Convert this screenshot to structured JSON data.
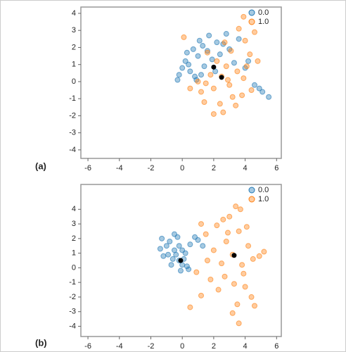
{
  "chart_data": [
    {
      "type": "scatter",
      "label": "(a)",
      "legend": "upper right",
      "xlim": [
        -6.45,
        6.3
      ],
      "ylim": [
        -4.5,
        4.37
      ],
      "xticks": [
        -6,
        -4,
        -2,
        0,
        2,
        4,
        6
      ],
      "yticks": [
        -4,
        -3,
        -2,
        -1,
        0,
        1,
        2,
        3,
        4
      ],
      "series": [
        {
          "name": "0.0",
          "color": "#1f77b4",
          "x": [
            0.2,
            0.5,
            1.0,
            1.3,
            0.8,
            1.6,
            2.2,
            1.9,
            0.4,
            -0.2,
            1.1,
            2.6,
            3.0,
            2.1,
            1.4,
            0.7,
            3.6,
            4.2,
            4.6,
            5.1,
            5.5,
            4.9,
            0.0,
            1.7,
            2.4,
            -0.3,
            0.9,
            3.3,
            1.2,
            2.8,
            0.3,
            4.0
          ],
          "y": [
            1.2,
            0.6,
            1.5,
            2.1,
            0.3,
            1.8,
            2.3,
            1.3,
            1.0,
            0.4,
            2.4,
            2.2,
            1.9,
            0.6,
            0.9,
            1.9,
            2.5,
            1.2,
            -0.2,
            -0.6,
            -0.9,
            -0.4,
            0.8,
            2.7,
            1.6,
            0.1,
            0.1,
            1.1,
            0.4,
            2.8,
            1.7,
            0.8
          ]
        },
        {
          "name": "1.0",
          "color": "#ff7f0e",
          "x": [
            2.5,
            2.0,
            3.0,
            1.5,
            2.8,
            3.5,
            2.2,
            1.8,
            3.2,
            2.4,
            1.2,
            3.9,
            4.3,
            4.0,
            3.6,
            3.9,
            4.6,
            4.8,
            1.0,
            2.6,
            2.0,
            3.4,
            0.5,
            0.1,
            3.1,
            2.7,
            4.4,
            1.6,
            3.8,
            2.9,
            1.4,
            4.1
          ],
          "y": [
            0.3,
            -0.4,
            -0.2,
            -0.1,
            0.9,
            0.6,
            1.2,
            0.4,
            -0.9,
            -1.3,
            -0.6,
            0.2,
            1.6,
            2.4,
            3.1,
            3.8,
            2.9,
            1.2,
            0.0,
            -1.8,
            -1.9,
            -1.4,
            -0.4,
            2.6,
            1.8,
            2.3,
            -0.5,
            1.7,
            -0.8,
            0.1,
            -1.2,
            0.9
          ]
        }
      ],
      "centroids": {
        "color": "#000000",
        "x": [
          2.0,
          2.5
        ],
        "y": [
          0.85,
          0.25
        ]
      }
    },
    {
      "type": "scatter",
      "label": "(b)",
      "legend": "upper right",
      "xlim": [
        -6.45,
        6.3
      ],
      "ylim": [
        -4.7,
        5.7
      ],
      "xticks": [
        -6,
        -4,
        -2,
        0,
        2,
        4,
        6
      ],
      "yticks": [
        -4,
        -3,
        -2,
        -1,
        0,
        1,
        2,
        3,
        4
      ],
      "series": [
        {
          "name": "0.0",
          "color": "#1f77b4",
          "x": [
            -0.2,
            -0.5,
            0.0,
            -0.8,
            -1.3,
            -0.3,
            0.2,
            -0.6,
            0.3,
            -0.1,
            -1.0,
            0.5,
            1.0,
            0.8,
            -0.4,
            0.1,
            -0.7,
            -1.4,
            -0.2,
            0.4,
            -0.9,
            0.0,
            -0.5,
            1.3,
            -1.2
          ],
          "y": [
            0.5,
            1.2,
            0.2,
            1.8,
            2.0,
            2.1,
            1.0,
            0.6,
            0.1,
            -0.2,
            1.5,
            1.6,
            1.9,
            2.1,
            0.9,
            0.6,
            0.2,
            1.3,
            1.5,
            -0.1,
            0.9,
            1.2,
            2.3,
            1.5,
            0.8
          ]
        },
        {
          "name": "1.0",
          "color": "#ff7f0e",
          "x": [
            3.2,
            2.8,
            3.6,
            2.5,
            3.9,
            4.2,
            2.2,
            3.0,
            3.4,
            3.7,
            4.5,
            4.0,
            4.4,
            3.5,
            3.2,
            3.6,
            4.6,
            2.0,
            1.5,
            1.2,
            0.9,
            1.8,
            2.3,
            1.2,
            0.5,
            3.8,
            2.7,
            4.9,
            5.2,
            2.9,
            1.6,
            3.3,
            4.1,
            2.6
          ],
          "y": [
            0.9,
            1.8,
            2.5,
            0.3,
            -0.4,
            1.5,
            2.9,
            3.5,
            4.2,
            4.0,
            0.6,
            -1.3,
            -2.0,
            -2.5,
            -3.1,
            -3.8,
            -2.6,
            1.2,
            2.3,
            3.0,
            -0.3,
            -0.8,
            -1.5,
            -1.9,
            -2.7,
            0.2,
            -0.6,
            0.8,
            1.1,
            2.4,
            0.5,
            -1.1,
            2.8,
            3.3
          ]
        }
      ],
      "centroids": {
        "color": "#000000",
        "x": [
          -0.1,
          3.3
        ],
        "y": [
          0.5,
          0.85
        ]
      }
    }
  ]
}
